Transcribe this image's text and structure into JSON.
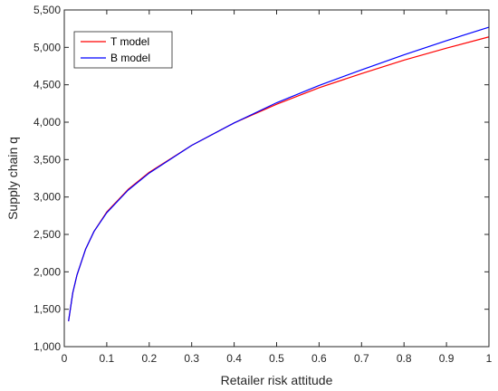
{
  "chart_data": {
    "type": "line",
    "title": "",
    "xlabel": "Retailer risk attitude",
    "ylabel": "Supply chain q",
    "xlim": [
      0,
      1
    ],
    "ylim": [
      1000,
      5500
    ],
    "x_ticks": [
      0,
      0.1,
      0.2,
      0.3,
      0.4,
      0.5,
      0.6,
      0.7,
      0.8,
      0.9,
      1
    ],
    "x_tick_labels": [
      "0",
      "0.1",
      "0.2",
      "0.3",
      "0.4",
      "0.5",
      "0.6",
      "0.7",
      "0.8",
      "0.9",
      "1"
    ],
    "y_ticks": [
      1000,
      1500,
      2000,
      2500,
      3000,
      3500,
      4000,
      4500,
      5000,
      5500
    ],
    "y_tick_labels": [
      "1,000",
      "1,500",
      "2,000",
      "2,500",
      "3,000",
      "3,500",
      "4,000",
      "4,500",
      "5,000",
      "5,500"
    ],
    "grid": false,
    "legend_position": "top-left",
    "x": [
      0.01,
      0.02,
      0.03,
      0.05,
      0.07,
      0.1,
      0.15,
      0.2,
      0.3,
      0.4,
      0.5,
      0.6,
      0.7,
      0.8,
      0.9,
      1.0
    ],
    "series": [
      {
        "name": "T model",
        "color": "#ff0000",
        "values": [
          1340,
          1720,
          1960,
          2300,
          2540,
          2800,
          3100,
          3330,
          3690,
          3990,
          4240,
          4460,
          4650,
          4830,
          4990,
          5140
        ]
      },
      {
        "name": "B model",
        "color": "#0000ff",
        "values": [
          1340,
          1720,
          1960,
          2300,
          2540,
          2790,
          3090,
          3320,
          3690,
          3990,
          4260,
          4490,
          4700,
          4900,
          5090,
          5270
        ]
      }
    ]
  }
}
